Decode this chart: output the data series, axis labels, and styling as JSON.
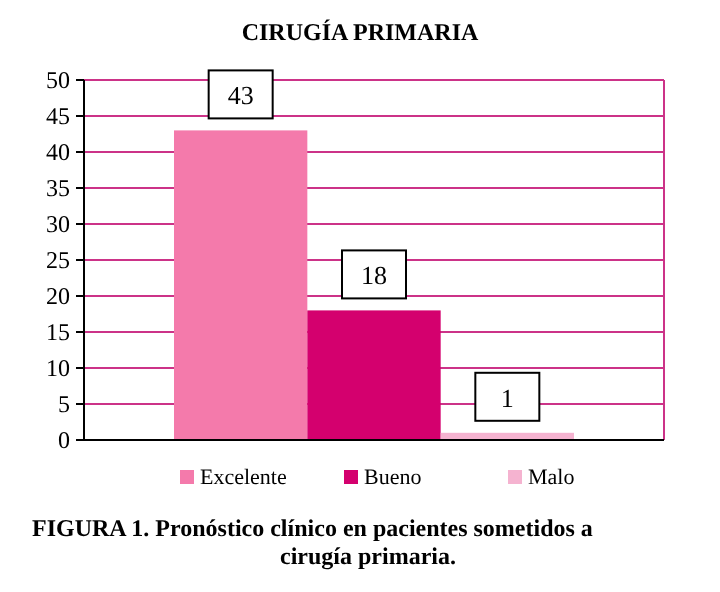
{
  "chart_data": {
    "type": "bar",
    "title": "CIRUGÍA PRIMARIA",
    "categories": [
      null
    ],
    "series": [
      {
        "name": "Excelente",
        "color": "#f47aab",
        "values": [
          43
        ]
      },
      {
        "name": "Bueno",
        "color": "#d4006e",
        "values": [
          18
        ]
      },
      {
        "name": "Malo",
        "color": "#f5b3d0",
        "values": [
          1
        ]
      }
    ],
    "ylim": [
      0,
      50
    ],
    "yticks": [
      0,
      5,
      10,
      15,
      20,
      25,
      30,
      35,
      40,
      45,
      50
    ],
    "grid": "y",
    "legend": "bottom",
    "data_labels": true,
    "annotations": [
      "FIGURA 1. Pronóstico clínico en pacientes sometidos a cirugía primaria."
    ]
  }
}
